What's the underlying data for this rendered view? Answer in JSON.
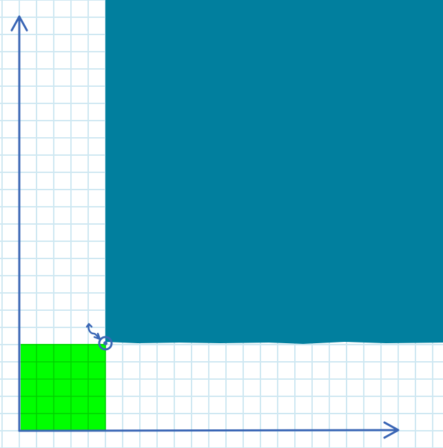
{
  "colors": {
    "background": "#ffffff",
    "grid": "#cfe8f2",
    "axis": "#3a66b5",
    "large_square": "#017f9e",
    "small_square": "#00ff00"
  },
  "icons": {
    "pivot": "pivot-point-icon",
    "rotation": "rotation-arrow-icon"
  },
  "grid": {
    "visible": true
  }
}
